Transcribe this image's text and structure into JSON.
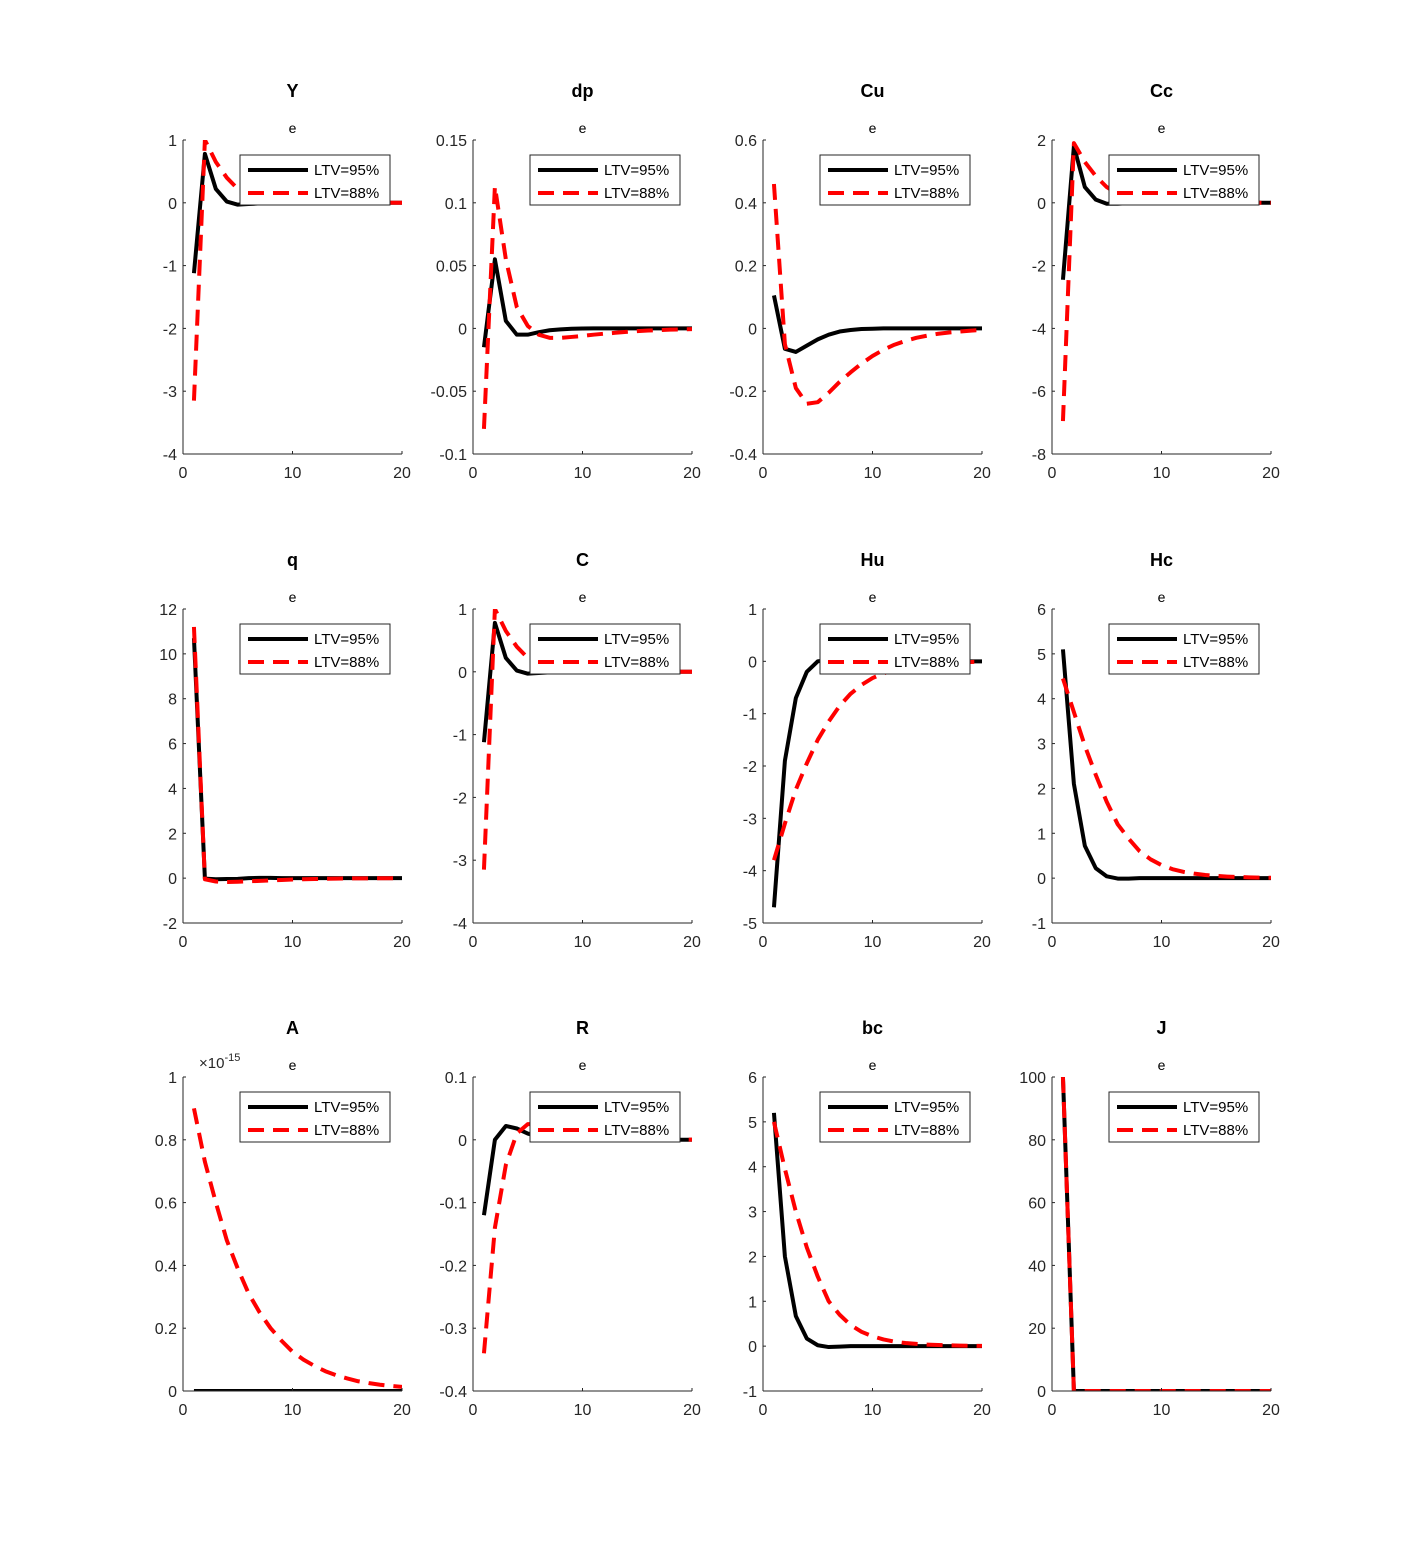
{
  "colors": {
    "s1": "#000000",
    "s2": "#ff0000"
  },
  "legend": [
    "LTV=95%",
    "LTV=88%"
  ],
  "chart_data": [
    {
      "type": "line",
      "title": "Y",
      "subtitle": "e",
      "xlim": [
        0,
        20
      ],
      "ylim": [
        -4,
        1
      ],
      "xticks": [
        0,
        10,
        20
      ],
      "yticks": [
        -4,
        -3,
        -2,
        -1,
        0,
        1
      ],
      "ytick_labels": [
        "-4",
        "-3",
        "-2",
        "-1",
        "0",
        "1"
      ],
      "legend": "top-right",
      "series": [
        {
          "name": "LTV=95%",
          "values": [
            -1.12,
            0.78,
            0.22,
            0.02,
            -0.03,
            -0.02,
            -0.01,
            0,
            0,
            0,
            0,
            0,
            0,
            0,
            0,
            0,
            0,
            0,
            0,
            0
          ]
        },
        {
          "name": "LTV=88%",
          "values": [
            -3.15,
            1.0,
            0.65,
            0.4,
            0.22,
            0.12,
            0.06,
            0.03,
            0.02,
            0.01,
            0,
            0,
            0,
            0,
            0,
            0,
            0,
            0,
            0,
            0
          ]
        }
      ]
    },
    {
      "type": "line",
      "title": "dp",
      "subtitle": "e",
      "xlim": [
        0,
        20
      ],
      "ylim": [
        -0.1,
        0.15
      ],
      "xticks": [
        0,
        10,
        20
      ],
      "yticks": [
        -0.1,
        -0.05,
        0,
        0.05,
        0.1,
        0.15
      ],
      "ytick_labels": [
        "-0.1",
        "-0.05",
        "0",
        "0.05",
        "0.1",
        "0.15"
      ],
      "legend": "top-right",
      "series": [
        {
          "name": "LTV=95%",
          "values": [
            -0.015,
            0.055,
            0.006,
            -0.005,
            -0.005,
            -0.003,
            -0.0015,
            -0.0008,
            -0.0003,
            -0.0001,
            0,
            0,
            0,
            0,
            0,
            0,
            0,
            0,
            0,
            0
          ]
        },
        {
          "name": "LTV=88%",
          "values": [
            -0.08,
            0.113,
            0.055,
            0.017,
            0.002,
            -0.005,
            -0.0075,
            -0.0075,
            -0.0068,
            -0.006,
            -0.005,
            -0.0042,
            -0.0035,
            -0.0028,
            -0.0022,
            -0.0017,
            -0.0013,
            -0.001,
            -0.0008,
            -0.0006
          ]
        }
      ]
    },
    {
      "type": "line",
      "title": "Cu",
      "subtitle": "e",
      "xlim": [
        0,
        20
      ],
      "ylim": [
        -0.4,
        0.6
      ],
      "xticks": [
        0,
        10,
        20
      ],
      "yticks": [
        -0.4,
        -0.2,
        0,
        0.2,
        0.4,
        0.6
      ],
      "ytick_labels": [
        "-0.4",
        "-0.2",
        "0",
        "0.2",
        "0.4",
        "0.6"
      ],
      "legend": "top-right",
      "series": [
        {
          "name": "LTV=95%",
          "values": [
            0.105,
            -0.065,
            -0.075,
            -0.055,
            -0.035,
            -0.02,
            -0.01,
            -0.005,
            -0.002,
            -0.001,
            0,
            0,
            0,
            0,
            0,
            0,
            0,
            0,
            0,
            0
          ]
        },
        {
          "name": "LTV=88%",
          "values": [
            0.46,
            -0.05,
            -0.19,
            -0.24,
            -0.235,
            -0.205,
            -0.17,
            -0.14,
            -0.112,
            -0.088,
            -0.068,
            -0.052,
            -0.04,
            -0.03,
            -0.023,
            -0.017,
            -0.013,
            -0.01,
            -0.007,
            -0.005
          ]
        }
      ]
    },
    {
      "type": "line",
      "title": "Cc",
      "subtitle": "e",
      "xlim": [
        0,
        20
      ],
      "ylim": [
        -8,
        2
      ],
      "xticks": [
        0,
        10,
        20
      ],
      "yticks": [
        -8,
        -6,
        -4,
        -2,
        0,
        2
      ],
      "ytick_labels": [
        "-8",
        "-6",
        "-4",
        "-2",
        "0",
        "2"
      ],
      "legend": "top-right",
      "series": [
        {
          "name": "LTV=95%",
          "values": [
            -2.45,
            1.8,
            0.5,
            0.1,
            -0.03,
            -0.03,
            -0.01,
            0,
            0,
            0,
            0,
            0,
            0,
            0,
            0,
            0,
            0,
            0,
            0,
            0
          ]
        },
        {
          "name": "LTV=88%",
          "values": [
            -6.95,
            1.9,
            1.3,
            0.85,
            0.5,
            0.28,
            0.15,
            0.08,
            0.04,
            0.02,
            0.01,
            0,
            0,
            0,
            0,
            0,
            0,
            0,
            0,
            0
          ]
        }
      ]
    },
    {
      "type": "line",
      "title": "q",
      "subtitle": "e",
      "xlim": [
        0,
        20
      ],
      "ylim": [
        -2,
        12
      ],
      "xticks": [
        0,
        10,
        20
      ],
      "yticks": [
        -2,
        0,
        2,
        4,
        6,
        8,
        10,
        12
      ],
      "ytick_labels": [
        "-2",
        "0",
        "2",
        "4",
        "6",
        "8",
        "10",
        "12"
      ],
      "legend": "top-right",
      "series": [
        {
          "name": "LTV=95%",
          "values": [
            10.7,
            -0.02,
            -0.05,
            -0.04,
            -0.03,
            0,
            0.01,
            0.01,
            0,
            0,
            0,
            0,
            0,
            0,
            0,
            0,
            0,
            0,
            0,
            0
          ]
        },
        {
          "name": "LTV=88%",
          "values": [
            11.2,
            -0.05,
            -0.15,
            -0.17,
            -0.16,
            -0.14,
            -0.12,
            -0.1,
            -0.08,
            -0.06,
            -0.05,
            -0.04,
            -0.03,
            -0.02,
            -0.015,
            -0.01,
            -0.008,
            -0.006,
            -0.004,
            -0.003
          ]
        }
      ]
    },
    {
      "type": "line",
      "title": "C",
      "subtitle": "e",
      "xlim": [
        0,
        20
      ],
      "ylim": [
        -4,
        1
      ],
      "xticks": [
        0,
        10,
        20
      ],
      "yticks": [
        -4,
        -3,
        -2,
        -1,
        0,
        1
      ],
      "ytick_labels": [
        "-4",
        "-3",
        "-2",
        "-1",
        "0",
        "1"
      ],
      "legend": "top-right",
      "series": [
        {
          "name": "LTV=95%",
          "values": [
            -1.12,
            0.78,
            0.22,
            0.02,
            -0.03,
            -0.02,
            -0.01,
            0,
            0,
            0,
            0,
            0,
            0,
            0,
            0,
            0,
            0,
            0,
            0,
            0
          ]
        },
        {
          "name": "LTV=88%",
          "values": [
            -3.15,
            1.0,
            0.65,
            0.4,
            0.22,
            0.12,
            0.06,
            0.03,
            0.02,
            0.01,
            0,
            0,
            0,
            0,
            0,
            0,
            0,
            0,
            0,
            0
          ]
        }
      ]
    },
    {
      "type": "line",
      "title": "Hu",
      "subtitle": "e",
      "xlim": [
        0,
        20
      ],
      "ylim": [
        -5,
        1
      ],
      "xticks": [
        0,
        10,
        20
      ],
      "yticks": [
        -5,
        -4,
        -3,
        -2,
        -1,
        0,
        1
      ],
      "ytick_labels": [
        "-5",
        "-4",
        "-3",
        "-2",
        "-1",
        "0",
        "1"
      ],
      "legend": "top-right",
      "series": [
        {
          "name": "LTV=95%",
          "values": [
            -4.7,
            -1.9,
            -0.7,
            -0.2,
            0,
            0.03,
            0.02,
            0.01,
            0,
            0,
            0,
            0,
            0,
            0,
            0,
            0,
            0,
            0,
            0,
            0
          ]
        },
        {
          "name": "LTV=88%",
          "values": [
            -3.8,
            -3.1,
            -2.45,
            -1.95,
            -1.5,
            -1.15,
            -0.85,
            -0.62,
            -0.45,
            -0.32,
            -0.23,
            -0.16,
            -0.11,
            -0.08,
            -0.055,
            -0.038,
            -0.026,
            -0.018,
            -0.012,
            -0.008
          ]
        }
      ]
    },
    {
      "type": "line",
      "title": "Hc",
      "subtitle": "e",
      "xlim": [
        0,
        20
      ],
      "ylim": [
        -1,
        6
      ],
      "xticks": [
        0,
        10,
        20
      ],
      "yticks": [
        -1,
        0,
        1,
        2,
        3,
        4,
        5,
        6
      ],
      "ytick_labels": [
        "-1",
        "0",
        "1",
        "2",
        "3",
        "4",
        "5",
        "6"
      ],
      "legend": "top-right",
      "series": [
        {
          "name": "LTV=95%",
          "values": [
            5.1,
            2.1,
            0.72,
            0.22,
            0.04,
            -0.01,
            -0.01,
            0,
            0,
            0,
            0,
            0,
            0,
            0,
            0,
            0,
            0,
            0,
            0,
            0
          ]
        },
        {
          "name": "LTV=88%",
          "values": [
            4.45,
            3.7,
            2.95,
            2.3,
            1.7,
            1.2,
            0.88,
            0.6,
            0.42,
            0.29,
            0.2,
            0.14,
            0.1,
            0.07,
            0.05,
            0.035,
            0.025,
            0.018,
            0.012,
            0.008
          ]
        }
      ]
    },
    {
      "type": "line",
      "title": "A",
      "subtitle": "e",
      "xlim": [
        0,
        20
      ],
      "ylim": [
        0,
        1
      ],
      "y_exponent": "-15",
      "xticks": [
        0,
        10,
        20
      ],
      "yticks": [
        0,
        0.2,
        0.4,
        0.6,
        0.8,
        1
      ],
      "ytick_labels": [
        "0",
        "0.2",
        "0.4",
        "0.6",
        "0.8",
        "1"
      ],
      "legend": "top-right",
      "series": [
        {
          "name": "LTV=95%",
          "values": [
            0,
            0,
            0,
            0,
            0,
            0,
            0,
            0,
            0,
            0,
            0,
            0,
            0,
            0,
            0,
            0,
            0,
            0,
            0,
            0
          ]
        },
        {
          "name": "LTV=88%",
          "values": [
            0.9,
            0.73,
            0.6,
            0.48,
            0.39,
            0.31,
            0.25,
            0.2,
            0.16,
            0.125,
            0.1,
            0.08,
            0.063,
            0.05,
            0.04,
            0.031,
            0.025,
            0.02,
            0.016,
            0.013
          ]
        }
      ]
    },
    {
      "type": "line",
      "title": "R",
      "subtitle": "e",
      "xlim": [
        0,
        20
      ],
      "ylim": [
        -0.4,
        0.1
      ],
      "xticks": [
        0,
        10,
        20
      ],
      "yticks": [
        -0.4,
        -0.3,
        -0.2,
        -0.1,
        0,
        0.1
      ],
      "ytick_labels": [
        "-0.4",
        "-0.3",
        "-0.2",
        "-0.1",
        "0",
        "0.1"
      ],
      "legend": "top-right",
      "series": [
        {
          "name": "LTV=95%",
          "values": [
            -0.12,
            0,
            0.022,
            0.018,
            0.01,
            0.005,
            0.002,
            0.001,
            0,
            0,
            0,
            0,
            0,
            0,
            0,
            0,
            0,
            0,
            0,
            0
          ]
        },
        {
          "name": "LTV=88%",
          "values": [
            -0.34,
            -0.14,
            -0.04,
            0.01,
            0.025,
            0.025,
            0.02,
            0.015,
            0.011,
            0.008,
            0.006,
            0.004,
            0.003,
            0.002,
            0.0015,
            0.001,
            0.0008,
            0.0006,
            0.0004,
            0.0003
          ]
        }
      ]
    },
    {
      "type": "line",
      "title": "bc",
      "subtitle": "e",
      "xlim": [
        0,
        20
      ],
      "ylim": [
        -1,
        6
      ],
      "xticks": [
        0,
        10,
        20
      ],
      "yticks": [
        -1,
        0,
        1,
        2,
        3,
        4,
        5,
        6
      ],
      "ytick_labels": [
        "-1",
        "0",
        "1",
        "2",
        "3",
        "4",
        "5",
        "6"
      ],
      "legend": "top-right",
      "series": [
        {
          "name": "LTV=95%",
          "values": [
            5.2,
            2.0,
            0.67,
            0.17,
            0.02,
            -0.02,
            -0.01,
            0,
            0,
            0,
            0,
            0,
            0,
            0,
            0,
            0,
            0,
            0,
            0,
            0
          ]
        },
        {
          "name": "LTV=88%",
          "values": [
            5.0,
            3.95,
            3.0,
            2.2,
            1.55,
            1.0,
            0.7,
            0.47,
            0.32,
            0.22,
            0.15,
            0.1,
            0.07,
            0.05,
            0.035,
            0.025,
            0.018,
            0.012,
            0.008,
            0.005
          ]
        }
      ]
    },
    {
      "type": "line",
      "title": "J",
      "subtitle": "e",
      "xlim": [
        0,
        20
      ],
      "ylim": [
        0,
        100
      ],
      "xticks": [
        0,
        10,
        20
      ],
      "yticks": [
        0,
        20,
        40,
        60,
        80,
        100
      ],
      "ytick_labels": [
        "0",
        "20",
        "40",
        "60",
        "80",
        "100"
      ],
      "legend": "top-right",
      "series": [
        {
          "name": "LTV=95%",
          "values": [
            100,
            0,
            0,
            0,
            0,
            0,
            0,
            0,
            0,
            0,
            0,
            0,
            0,
            0,
            0,
            0,
            0,
            0,
            0,
            0
          ]
        },
        {
          "name": "LTV=88%",
          "values": [
            100,
            0,
            0,
            0,
            0,
            0,
            0,
            0,
            0,
            0,
            0,
            0,
            0,
            0,
            0,
            0,
            0,
            0,
            0,
            0
          ]
        }
      ]
    }
  ]
}
